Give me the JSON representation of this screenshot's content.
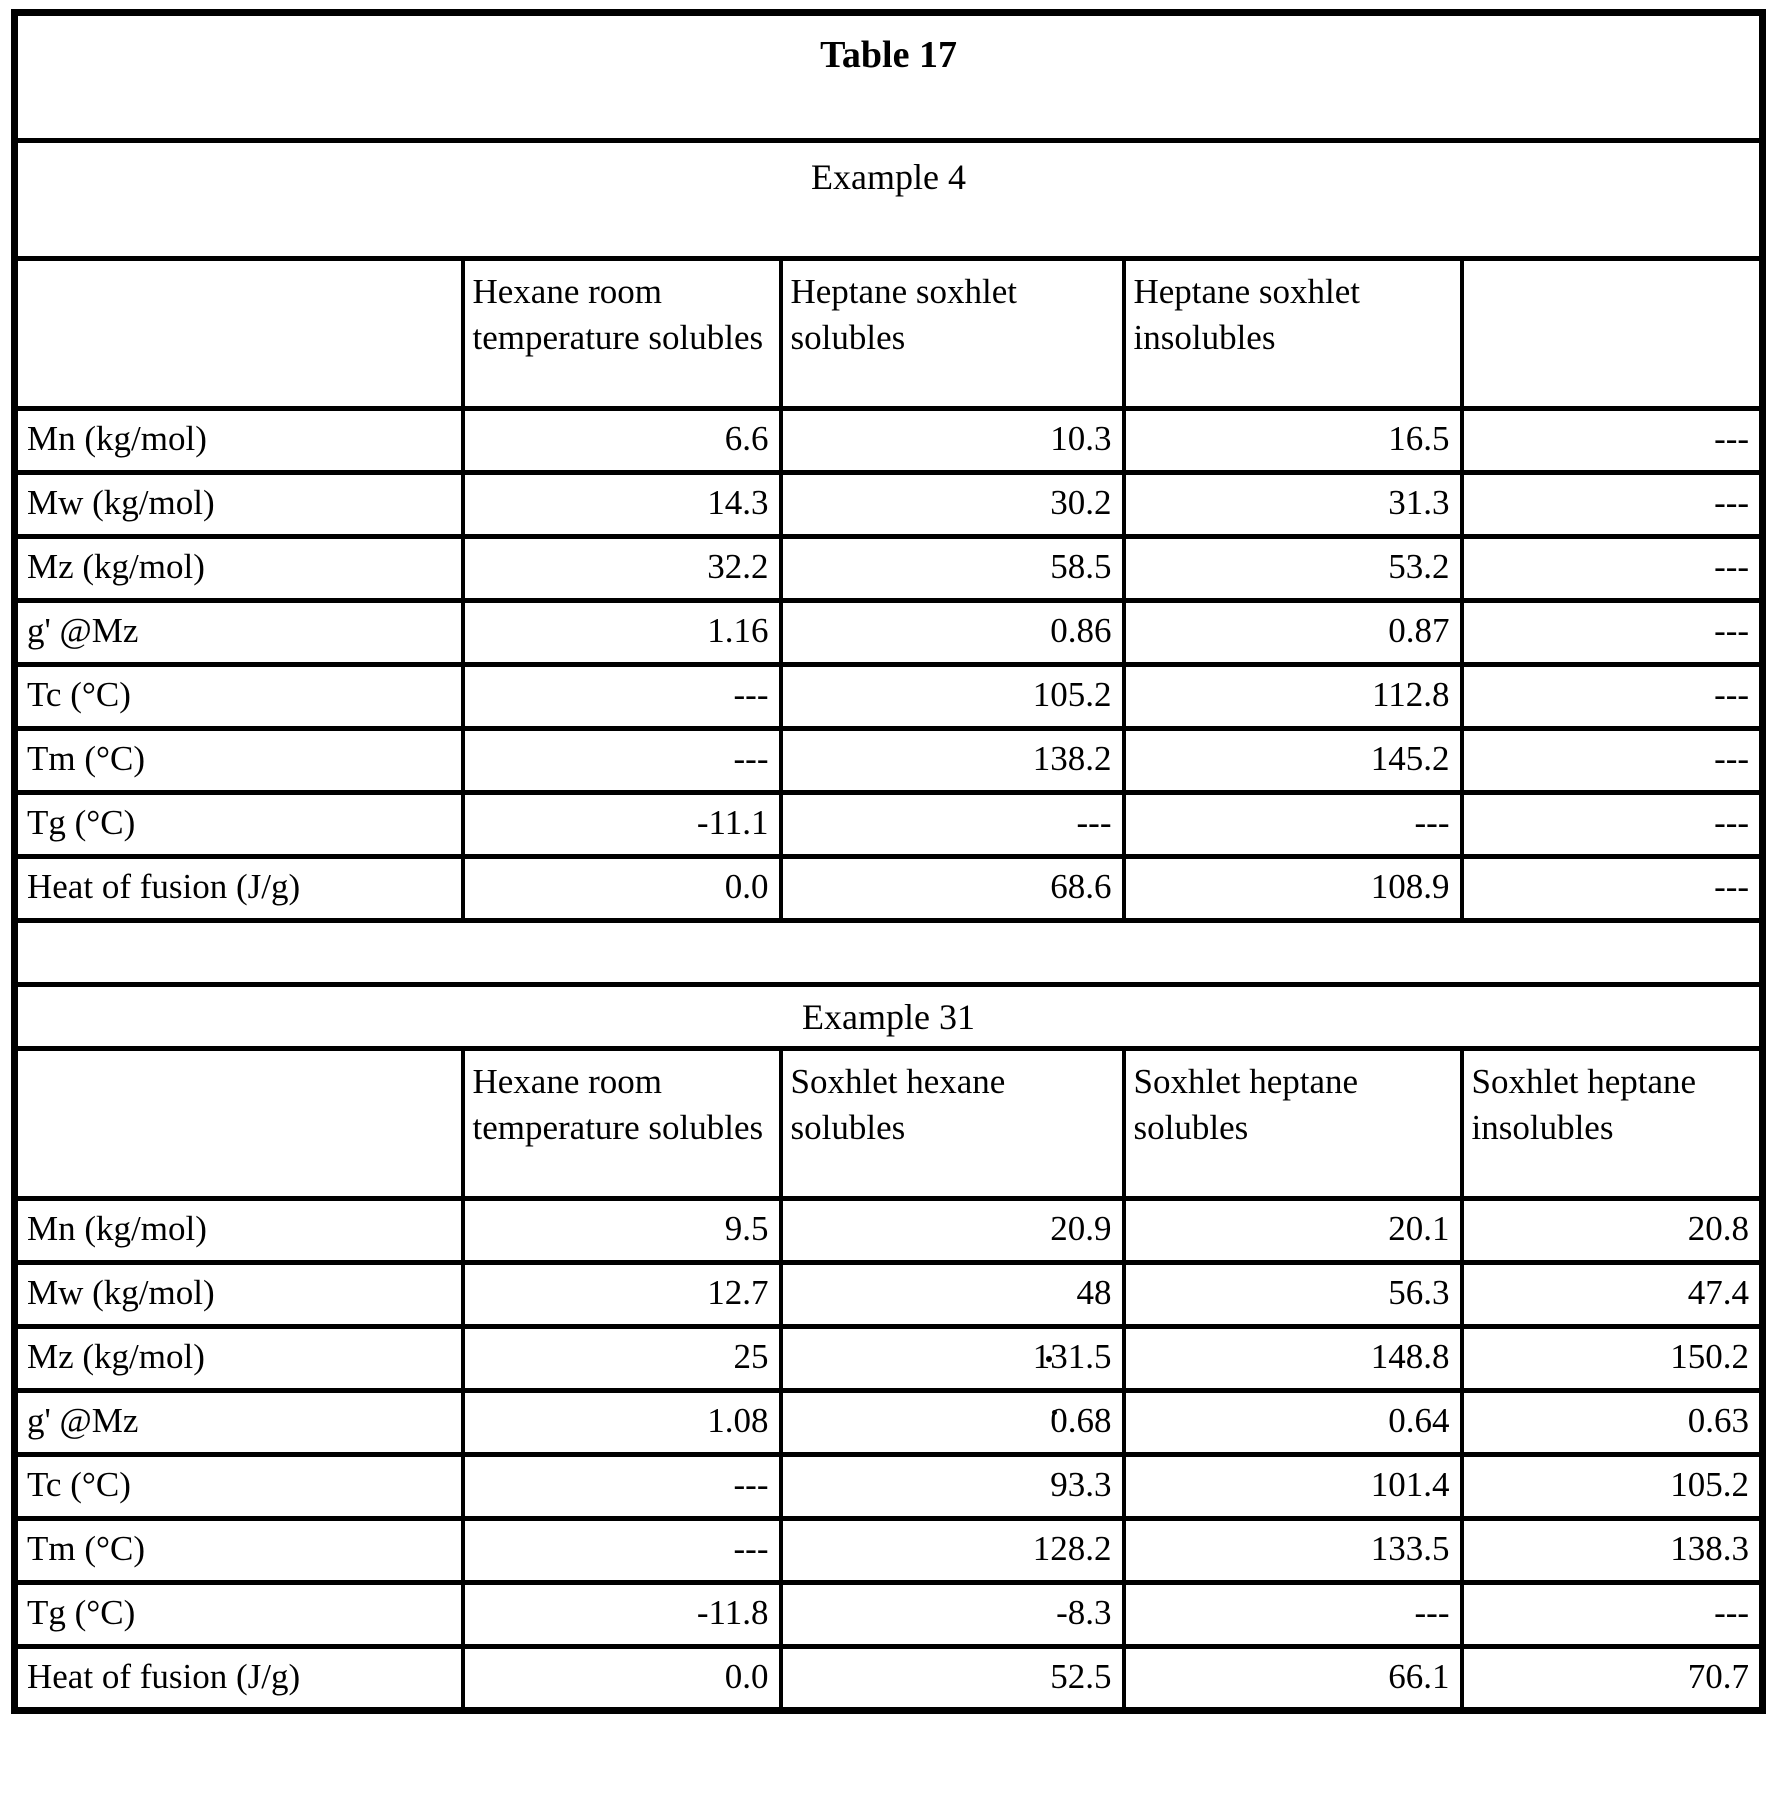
{
  "document": {
    "title": "Table 17",
    "sections": [
      {
        "caption": "Example 4",
        "column_headers": [
          "Hexane room temperature solubles",
          "Heptane soxhlet solubles",
          "Heptane soxhlet insolubles",
          ""
        ],
        "rows": [
          {
            "label": "Mn (kg/mol)",
            "values": [
              "6.6",
              "10.3",
              "16.5",
              "---"
            ]
          },
          {
            "label": "Mw (kg/mol)",
            "values": [
              "14.3",
              "30.2",
              "31.3",
              "---"
            ]
          },
          {
            "label": "Mz (kg/mol)",
            "values": [
              "32.2",
              "58.5",
              "53.2",
              "---"
            ]
          },
          {
            "label": "g' @Mz",
            "values": [
              "1.16",
              "0.86",
              "0.87",
              "---"
            ]
          },
          {
            "label": "Tc (°C)",
            "values": [
              "---",
              "105.2",
              "112.8",
              "---"
            ]
          },
          {
            "label": "Tm (°C)",
            "values": [
              "---",
              "138.2",
              "145.2",
              "---"
            ]
          },
          {
            "label": "Tg (°C)",
            "values": [
              "-11.1",
              "---",
              "---",
              "---"
            ]
          },
          {
            "label": "Heat of fusion (J/g)",
            "values": [
              "0.0",
              "68.6",
              "108.9",
              "---"
            ]
          }
        ]
      },
      {
        "caption": "Example 31",
        "column_headers": [
          "Hexane room temperature solubles",
          "Soxhlet hexane solubles",
          "Soxhlet heptane solubles",
          "Soxhlet heptane insolubles"
        ],
        "rows": [
          {
            "label": "Mn (kg/mol)",
            "values": [
              "9.5",
              "20.9",
              "20.1",
              "20.8"
            ]
          },
          {
            "label": "Mw (kg/mol)",
            "values": [
              "12.7",
              "48",
              "56.3",
              "47.4"
            ]
          },
          {
            "label": "Mz (kg/mol)",
            "values": [
              "25",
              "131.5",
              "148.8",
              "150.2"
            ]
          },
          {
            "label": "g' @Mz",
            "values": [
              "1.08",
              "0.68",
              "0.64",
              "0.63"
            ]
          },
          {
            "label": "Tc (°C)",
            "values": [
              "---",
              "93.3",
              "101.4",
              "105.2"
            ]
          },
          {
            "label": "Tm (°C)",
            "values": [
              "---",
              "128.2",
              "133.5",
              "138.3"
            ]
          },
          {
            "label": "Tg (°C)",
            "values": [
              "-11.8",
              "-8.3",
              "---",
              "---"
            ]
          },
          {
            "label": "Heat of fusion (J/g)",
            "values": [
              "0.0",
              "52.5",
              "66.1",
              "70.7"
            ]
          }
        ]
      }
    ]
  }
}
